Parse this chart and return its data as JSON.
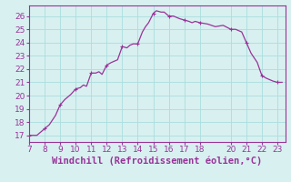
{
  "x": [
    7.0,
    7.3,
    7.5,
    8.0,
    8.3,
    8.7,
    9.0,
    9.3,
    9.7,
    10.0,
    10.3,
    10.5,
    10.7,
    11.0,
    11.3,
    11.5,
    11.7,
    12.0,
    12.3,
    12.5,
    12.7,
    13.0,
    13.3,
    13.5,
    13.7,
    14.0,
    14.3,
    14.5,
    14.7,
    15.0,
    15.2,
    15.5,
    15.7,
    16.0,
    16.3,
    16.5,
    16.7,
    17.0,
    17.3,
    17.5,
    17.7,
    18.0,
    18.5,
    19.0,
    19.5,
    20.0,
    20.3,
    20.7,
    21.0,
    21.3,
    21.7,
    22.0,
    22.3,
    22.7,
    23.0,
    23.3
  ],
  "y": [
    17.0,
    17.0,
    17.0,
    17.5,
    17.8,
    18.5,
    19.3,
    19.7,
    20.1,
    20.5,
    20.6,
    20.8,
    20.7,
    21.7,
    21.7,
    21.8,
    21.6,
    22.3,
    22.5,
    22.6,
    22.7,
    23.7,
    23.6,
    23.8,
    23.9,
    23.9,
    24.8,
    25.2,
    25.5,
    26.2,
    26.4,
    26.3,
    26.3,
    26.0,
    26.0,
    25.9,
    25.8,
    25.7,
    25.6,
    25.5,
    25.6,
    25.5,
    25.4,
    25.2,
    25.3,
    25.0,
    25.0,
    24.8,
    24.0,
    23.2,
    22.5,
    21.5,
    21.3,
    21.1,
    21.0,
    21.0
  ],
  "marker_x": [
    7,
    8,
    9,
    10,
    11,
    12,
    13,
    14,
    15,
    16,
    17,
    18,
    20,
    21,
    22,
    23
  ],
  "marker_y": [
    17.0,
    17.5,
    19.3,
    20.5,
    21.7,
    22.3,
    23.7,
    23.9,
    26.2,
    26.0,
    25.7,
    25.5,
    25.0,
    24.0,
    21.5,
    21.0
  ],
  "line_color": "#993399",
  "marker_color": "#993399",
  "bg_color": "#d8f0f0",
  "grid_color": "#aadddd",
  "xlim": [
    7,
    23.5
  ],
  "ylim": [
    16.5,
    26.8
  ],
  "xticks": [
    7,
    8,
    9,
    10,
    11,
    12,
    13,
    14,
    15,
    16,
    17,
    18,
    20,
    21,
    22,
    23
  ],
  "yticks": [
    17,
    18,
    19,
    20,
    21,
    22,
    23,
    24,
    25,
    26
  ],
  "xlabel": "Windchill (Refroidissement éolien,°C)",
  "xlabel_fontsize": 7.5,
  "tick_fontsize": 6.5,
  "tick_color": "#993399",
  "axis_color": "#993399",
  "line_width": 0.9,
  "marker_size": 3.5
}
